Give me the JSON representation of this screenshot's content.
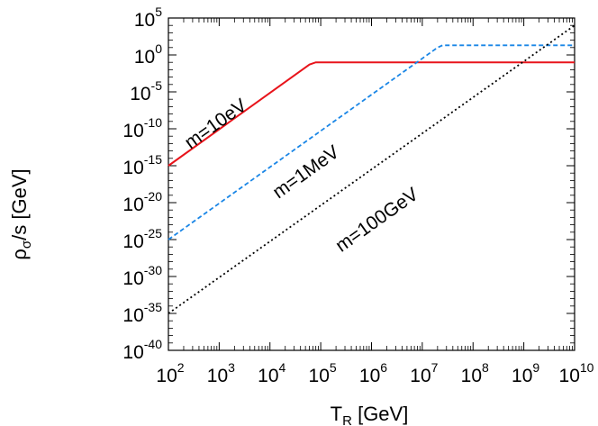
{
  "chart_data": {
    "type": "line",
    "title": "",
    "xlabel": {
      "main": "T",
      "sub": "R",
      "unit": " [GeV]"
    },
    "ylabel": {
      "main": "ρ",
      "sub": "σ",
      "rest": "/s [GeV]"
    },
    "x_scale": "log",
    "y_scale": "log",
    "xlim": [
      100,
      10000000000
    ],
    "ylim": [
      1e-40,
      100000
    ],
    "x_ticks": [
      {
        "value": 100,
        "base": "10",
        "exp": "2"
      },
      {
        "value": 1000,
        "base": "10",
        "exp": "3"
      },
      {
        "value": 10000,
        "base": "10",
        "exp": "4"
      },
      {
        "value": 100000,
        "base": "10",
        "exp": "5"
      },
      {
        "value": 1000000,
        "base": "10",
        "exp": "6"
      },
      {
        "value": 10000000,
        "base": "10",
        "exp": "7"
      },
      {
        "value": 100000000,
        "base": "10",
        "exp": "8"
      },
      {
        "value": 1000000000,
        "base": "10",
        "exp": "9"
      },
      {
        "value": 10000000000,
        "base": "10",
        "exp": "10"
      }
    ],
    "y_ticks": [
      {
        "value": 1e-40,
        "base": "10",
        "exp": "-40"
      },
      {
        "value": 1e-35,
        "base": "10",
        "exp": "-35"
      },
      {
        "value": 1e-30,
        "base": "10",
        "exp": "-30"
      },
      {
        "value": 1e-25,
        "base": "10",
        "exp": "-25"
      },
      {
        "value": 1e-20,
        "base": "10",
        "exp": "-20"
      },
      {
        "value": 1e-15,
        "base": "10",
        "exp": "-15"
      },
      {
        "value": 1e-10,
        "base": "10",
        "exp": "-10"
      },
      {
        "value": 1e-05,
        "base": "10",
        "exp": "-5"
      },
      {
        "value": 1,
        "base": "10",
        "exp": "0"
      },
      {
        "value": 100000,
        "base": "10",
        "exp": "5"
      }
    ],
    "grid": false,
    "series": [
      {
        "name": "m=10eV",
        "color": "#e8141b",
        "style": "solid",
        "points": [
          [
            100,
            1e-15
          ],
          [
            60000,
            0.05
          ],
          [
            80000,
            0.1
          ],
          [
            10000000000,
            0.1
          ]
        ],
        "label_anchor": [
          1000,
          1e-10
        ]
      },
      {
        "name": "m=1MeV",
        "color": "#1a86e6",
        "style": "dashed",
        "points": [
          [
            100,
            1e-25
          ],
          [
            20000000,
            10
          ],
          [
            25000000,
            20
          ],
          [
            10000000000,
            20
          ]
        ],
        "label_anchor": [
          60000,
          3e-17
        ]
      },
      {
        "name": "m=100GeV",
        "color": "#000000",
        "style": "dotted",
        "points": [
          [
            100,
            1e-35
          ],
          [
            10000000000,
            10000
          ]
        ],
        "label_anchor": [
          1500000,
          1e-23
        ]
      }
    ]
  }
}
